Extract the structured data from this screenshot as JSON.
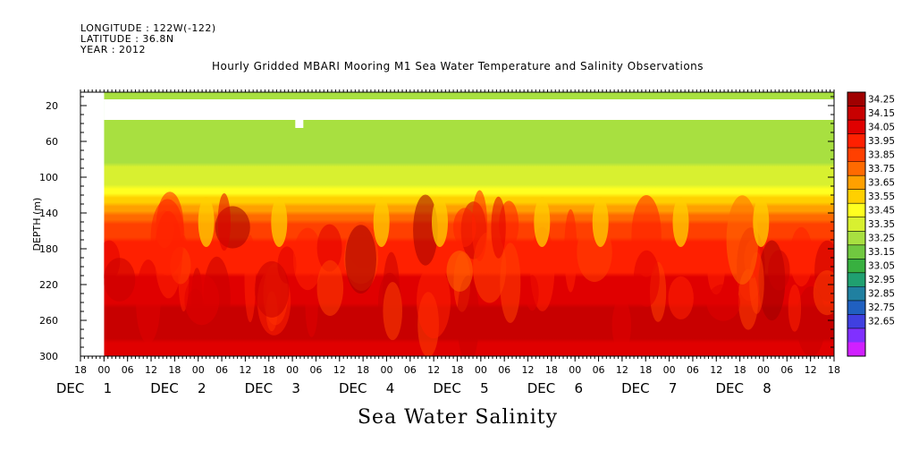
{
  "header": {
    "longitude": "LONGITUDE : 122W(-122)",
    "latitude": "LATITUDE : 36.8N",
    "year": "YEAR : 2012"
  },
  "chart_data": {
    "type": "heatmap",
    "title": "Hourly Gridded MBARI Mooring M1 Sea Water Temperature and Salinity Observations",
    "xlabel": "Sea Water Salinity",
    "ylabel": "DEPTH (m)",
    "ylim": [
      300,
      0
    ],
    "y_reversed": true,
    "y_ticks": [
      20,
      60,
      100,
      140,
      180,
      220,
      260,
      300
    ],
    "x_hour_ticks": [
      "18",
      "00",
      "06",
      "12",
      "18",
      "00",
      "06",
      "12",
      "18",
      "00",
      "06",
      "12",
      "18",
      "00",
      "06",
      "12",
      "18",
      "00",
      "06",
      "12",
      "18",
      "00",
      "06",
      "12",
      "18",
      "00",
      "06",
      "12",
      "18",
      "00",
      "06",
      "12",
      "18"
    ],
    "x_day_labels": [
      {
        "day": "DEC",
        "num": "1"
      },
      {
        "day": "DEC",
        "num": "2"
      },
      {
        "day": "DEC",
        "num": "3"
      },
      {
        "day": "DEC",
        "num": "4"
      },
      {
        "day": "DEC",
        "num": "5"
      },
      {
        "day": "DEC",
        "num": "6"
      },
      {
        "day": "DEC",
        "num": "7"
      },
      {
        "day": "DEC",
        "num": "8"
      }
    ],
    "data_start": "DEC 1 00",
    "data_end": "DEC 8 18",
    "colorbar_levels": [
      "34.25",
      "34.15",
      "34.05",
      "33.95",
      "33.85",
      "33.75",
      "33.65",
      "33.55",
      "33.45",
      "33.35",
      "33.25",
      "33.15",
      "33.05",
      "32.95",
      "32.85",
      "32.75",
      "32.65"
    ],
    "colorbar_colors": [
      "#a00000",
      "#c80000",
      "#e00000",
      "#ff2000",
      "#ff4000",
      "#ff6a00",
      "#ffa000",
      "#ffd000",
      "#ffff20",
      "#d8f030",
      "#a8e040",
      "#70c840",
      "#38b040",
      "#20a070",
      "#2080a0",
      "#2060c0",
      "#4040e0",
      "#8030ff",
      "#d020ff"
    ],
    "depth_profile": [
      {
        "depth": 10,
        "salinity": 33.35
      },
      {
        "depth": 40,
        "salinity": 33.35
      },
      {
        "depth": 80,
        "salinity": 33.38
      },
      {
        "depth": 110,
        "salinity": 33.48
      },
      {
        "depth": 130,
        "salinity": 33.65
      },
      {
        "depth": 150,
        "salinity": 33.85
      },
      {
        "depth": 180,
        "salinity": 33.98
      },
      {
        "depth": 220,
        "salinity": 34.05
      },
      {
        "depth": 260,
        "salinity": 34.17
      },
      {
        "depth": 300,
        "salinity": 34.08
      }
    ]
  }
}
